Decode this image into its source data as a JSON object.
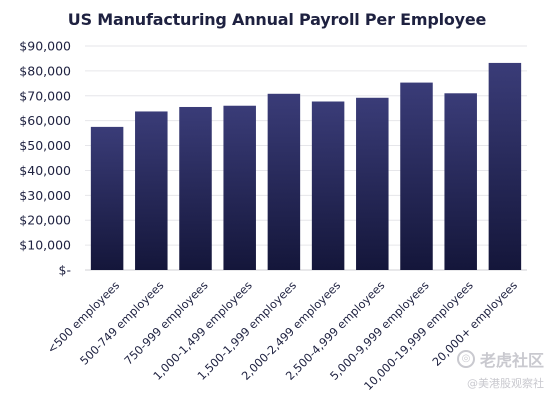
{
  "chart_data": {
    "type": "bar",
    "title": "US Manufacturing Annual Payroll Per Employee",
    "xlabel": "",
    "ylabel": "",
    "categories": [
      "<500 employees",
      "500-749 employees",
      "750-999 employees",
      "1,000-1,499 employees",
      "1,500-1,999 employees",
      "2,000-2,499 employees",
      "2,500-4,999 employees",
      "5,000-9,999 employees",
      "10,000-19,999 employees",
      "20,000+ employees"
    ],
    "values": [
      57500,
      63700,
      65500,
      66000,
      70800,
      67700,
      69200,
      75300,
      71000,
      83200
    ],
    "ylim": [
      0,
      90000
    ],
    "yticks": [
      0,
      10000,
      20000,
      30000,
      40000,
      50000,
      60000,
      70000,
      80000,
      90000
    ],
    "ytick_labels": [
      "$-",
      "$10,000",
      "$20,000",
      "$30,000",
      "$40,000",
      "$50,000",
      "$60,000",
      "$70,000",
      "$80,000",
      "$90,000"
    ],
    "grid": true,
    "bar_color_top": "#3a3c78",
    "bar_color_bottom": "#14163a"
  },
  "watermark": {
    "main": "老虎社区",
    "sub": "@美港股观察社"
  }
}
